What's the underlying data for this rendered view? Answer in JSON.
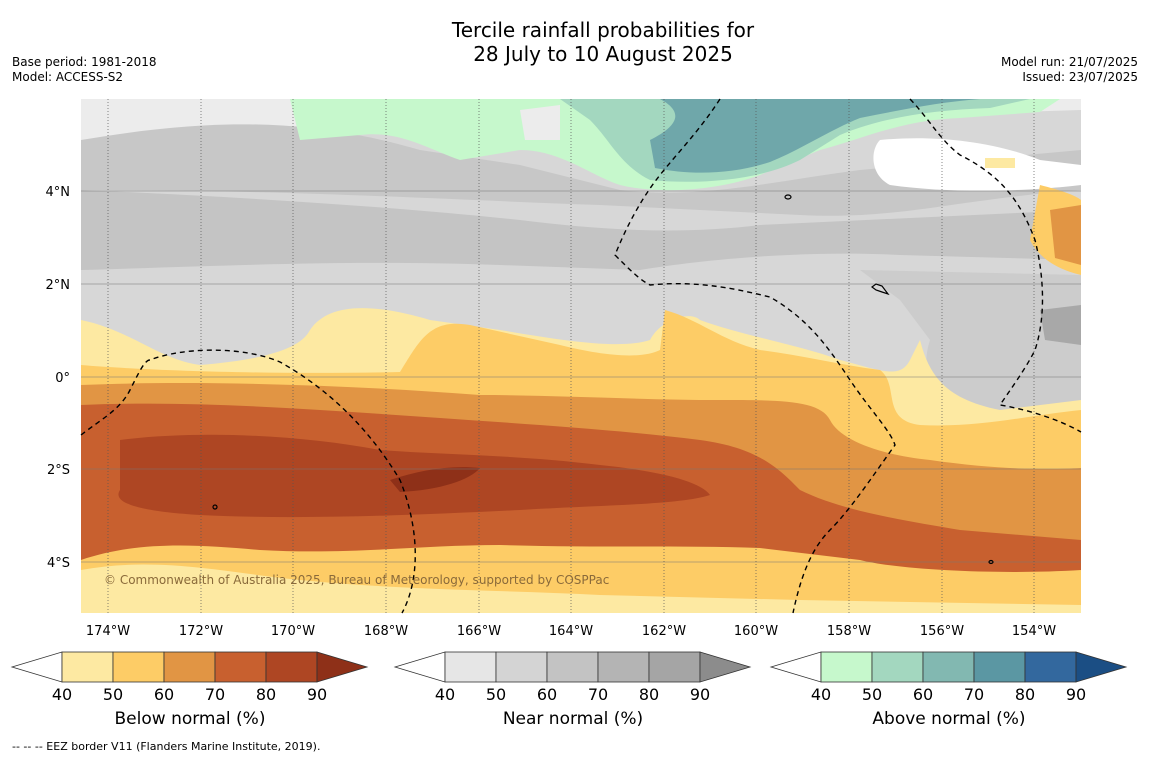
{
  "title": {
    "line1": "Tercile rainfall probabilities for",
    "line2": "28 July to 10 August 2025"
  },
  "meta": {
    "base_period": "Base period: 1981-2018",
    "model": "Model: ACCESS-S2",
    "model_run": "Model run: 21/07/2025",
    "issued": "Issued: 23/07/2025"
  },
  "map": {
    "lat_labels": [
      "4°N",
      "2°N",
      "0°",
      "2°S",
      "4°S"
    ],
    "lon_labels": [
      "174°W",
      "172°W",
      "170°W",
      "168°W",
      "166°W",
      "164°W",
      "162°W",
      "160°W",
      "158°W",
      "156°W",
      "154°W"
    ],
    "copyright": "© Commonwealth of Australia 2025, Bureau of Meteorology, supported by COSPPac"
  },
  "legends": [
    {
      "label": "Below normal (%)",
      "ticks": [
        "40",
        "50",
        "60",
        "70",
        "80",
        "90"
      ],
      "colors": [
        "#fde9a2",
        "#fdcc66",
        "#e19544",
        "#c8602f",
        "#ae4623",
        "#8e3018"
      ]
    },
    {
      "label": "Near normal (%)",
      "ticks": [
        "40",
        "50",
        "60",
        "70",
        "80",
        "90"
      ],
      "colors": [
        "#e6e6e6",
        "#d4d4d4",
        "#c3c3c3",
        "#b4b4b4",
        "#a5a5a5",
        "#8c8c8c"
      ]
    },
    {
      "label": "Above normal (%)",
      "ticks": [
        "40",
        "50",
        "60",
        "70",
        "80",
        "90"
      ],
      "colors": [
        "#c6f8cc",
        "#a3d7bf",
        "#82b8b1",
        "#5b97a3",
        "#33689e",
        "#1b4e84"
      ]
    }
  ],
  "footnote": "--  --  -- EEZ border V11 (Flanders Marine Institute, 2019)."
}
